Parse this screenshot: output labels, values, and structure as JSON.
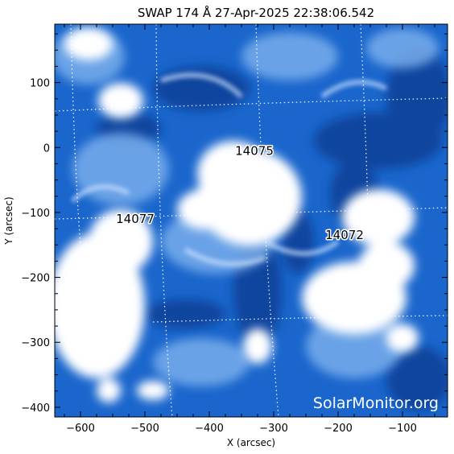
{
  "title": "SWAP 174 Å 27-Apr-2025 22:38:06.542",
  "x_axis": {
    "label": "X (arcsec)",
    "range": [
      -640,
      -30
    ],
    "ticks": [
      -600,
      -500,
      -400,
      -300,
      -200,
      -100
    ],
    "tick_labels": [
      "−600",
      "−500",
      "−400",
      "−300",
      "−200",
      "−100"
    ]
  },
  "y_axis": {
    "label": "Y (arcsec)",
    "range": [
      -415,
      190
    ],
    "ticks": [
      100,
      0,
      -100,
      -200,
      -300,
      -400
    ],
    "tick_labels": [
      "100",
      "0",
      "−100",
      "−200",
      "−300",
      "−400"
    ]
  },
  "active_regions": [
    {
      "id": "14075",
      "x": -330,
      "y": -5
    },
    {
      "id": "14077",
      "x": -515,
      "y": -110
    },
    {
      "id": "14072",
      "x": -190,
      "y": -135
    }
  ],
  "watermark": "SolarMonitor.org",
  "colors": {
    "background_blue": "#1560c8",
    "dark_blue": "#0a3a8c",
    "bright": "#ffffff",
    "grid": "#ffffff"
  },
  "grid": "dotted heliographic lines"
}
